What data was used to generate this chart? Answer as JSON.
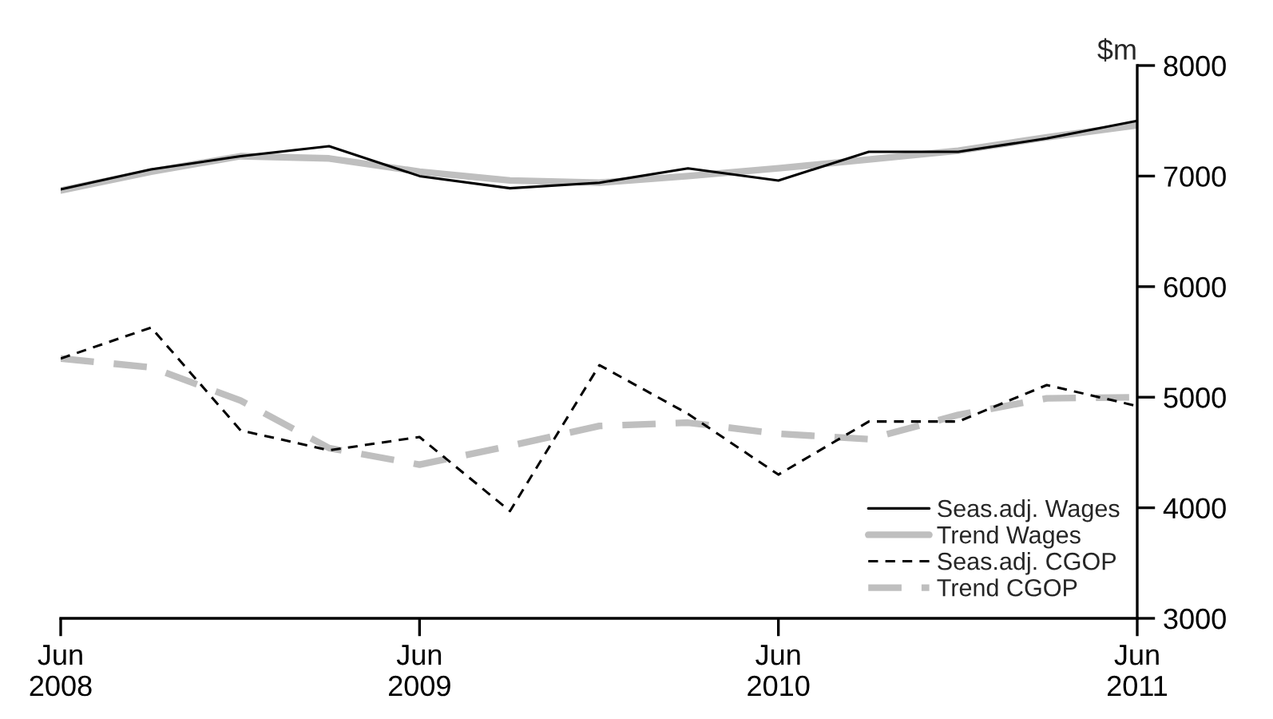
{
  "chart_data": {
    "type": "line",
    "x": [
      "2008-06",
      "2008-09",
      "2008-12",
      "2009-03",
      "2009-06",
      "2009-09",
      "2009-12",
      "2010-03",
      "2010-06",
      "2010-09",
      "2010-12",
      "2011-03",
      "2011-06"
    ],
    "ylabel": "$m",
    "series": [
      {
        "name": "Seas.adj. Wages",
        "color": "#000000",
        "line_style": "solid",
        "values": [
          6880,
          7060,
          7180,
          7270,
          7000,
          6890,
          6940,
          7070,
          6960,
          7220,
          7220,
          7340,
          7500
        ]
      },
      {
        "name": "Trend Wages",
        "color": "#bfbfbf",
        "line_style": "solid",
        "values": [
          6870,
          7040,
          7180,
          7160,
          7040,
          6960,
          6940,
          7000,
          7070,
          7150,
          7230,
          7350,
          7460
        ]
      },
      {
        "name": "Seas.adj. CGOP",
        "color": "#000000",
        "line_style": "dashed",
        "values": [
          5350,
          5630,
          4700,
          4520,
          4640,
          3970,
          5290,
          4850,
          4300,
          4780,
          4780,
          5110,
          4920
        ]
      },
      {
        "name": "Trend CGOP",
        "color": "#bfbfbf",
        "line_style": "dashed",
        "values": [
          5350,
          5270,
          4970,
          4540,
          4390,
          4560,
          4740,
          4770,
          4670,
          4620,
          4840,
          4990,
          5000
        ]
      }
    ],
    "xlim": [
      "2008-06",
      "2011-06"
    ],
    "xticks": [
      {
        "value": "2008-06",
        "label": "Jun\n2008"
      },
      {
        "value": "2009-06",
        "label": "Jun\n2009"
      },
      {
        "value": "2010-06",
        "label": "Jun\n2010"
      },
      {
        "value": "2011-06",
        "label": "Jun\n2011"
      }
    ],
    "ylim": [
      3000,
      8000
    ],
    "yticks": [
      3000,
      4000,
      5000,
      6000,
      7000,
      8000
    ],
    "grid": false,
    "legend": "bottom right"
  }
}
